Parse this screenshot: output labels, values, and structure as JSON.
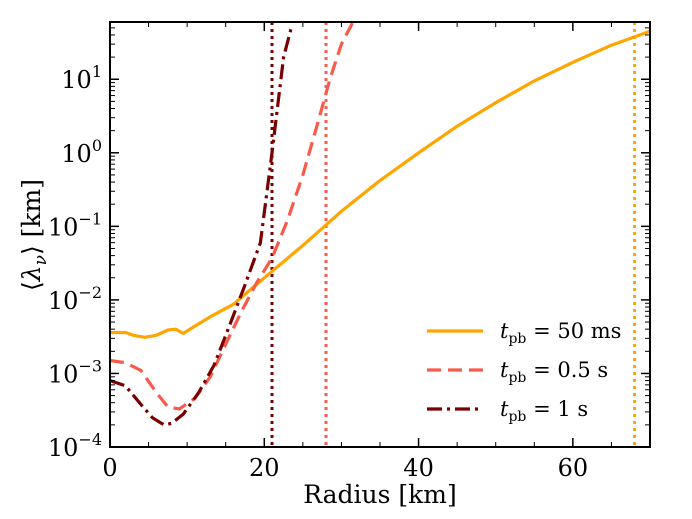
{
  "chart_data": {
    "type": "line",
    "xlabel": "Radius [km]",
    "ylabel": "⟨λ_ν⟩ [km]",
    "xlim": [
      0,
      70
    ],
    "ylim": [
      0.0001,
      60
    ],
    "yscale": "log",
    "x_ticks": [
      0,
      20,
      40,
      60
    ],
    "x_tick_labels": [
      "0",
      "20",
      "40",
      "60"
    ],
    "y_ticks": [
      0.0001,
      0.001,
      0.01,
      0.1,
      1,
      10
    ],
    "y_tick_labels": [
      {
        "base": "10",
        "exp": "−4"
      },
      {
        "base": "10",
        "exp": "−3"
      },
      {
        "base": "10",
        "exp": "−2"
      },
      {
        "base": "10",
        "exp": "−1"
      },
      {
        "base": "10",
        "exp": "0"
      },
      {
        "base": "10",
        "exp": "1"
      }
    ],
    "legend_position": "bottom-right",
    "series": [
      {
        "name": "t_pb = 50 ms",
        "label_var": "t",
        "label_sub": "pb",
        "label_value": " = 50 ms",
        "color": "#FFA500",
        "dash": "solid",
        "points": [
          [
            0,
            0.0036
          ],
          [
            2,
            0.0036
          ],
          [
            3,
            0.0033
          ],
          [
            4.5,
            0.0031
          ],
          [
            6,
            0.0033
          ],
          [
            7.5,
            0.0039
          ],
          [
            8.5,
            0.004
          ],
          [
            9.5,
            0.0035
          ],
          [
            11,
            0.0044
          ],
          [
            13,
            0.0059
          ],
          [
            16,
            0.0087
          ],
          [
            20,
            0.02
          ],
          [
            25,
            0.055
          ],
          [
            30,
            0.16
          ],
          [
            35,
            0.42
          ],
          [
            40,
            1.0
          ],
          [
            45,
            2.3
          ],
          [
            50,
            4.8
          ],
          [
            55,
            9.5
          ],
          [
            60,
            17
          ],
          [
            65,
            29
          ],
          [
            70,
            45
          ]
        ],
        "vline_x": 68
      },
      {
        "name": "t_pb = 0.5 s",
        "label_var": "t",
        "label_sub": "pb",
        "label_value": " = 0.5 s",
        "color": "#F75C4A",
        "dash": "dashed",
        "points": [
          [
            0,
            0.0015
          ],
          [
            2,
            0.0014
          ],
          [
            4,
            0.0011
          ],
          [
            6,
            0.00055
          ],
          [
            7.5,
            0.00035
          ],
          [
            9,
            0.00033
          ],
          [
            11,
            0.00046
          ],
          [
            13,
            0.0009
          ],
          [
            15,
            0.0025
          ],
          [
            17,
            0.0068
          ],
          [
            19,
            0.017
          ],
          [
            21,
            0.037
          ],
          [
            23,
            0.12
          ],
          [
            25,
            0.5
          ],
          [
            27,
            2.7
          ],
          [
            28.5,
            10
          ],
          [
            30,
            30
          ],
          [
            31.5,
            60
          ]
        ],
        "vline_x": 28
      },
      {
        "name": "t_pb = 1 s",
        "label_var": "t",
        "label_sub": "pb",
        "label_value": " = 1 s",
        "color": "#7A0000",
        "dash": "dashdot",
        "points": [
          [
            0,
            0.0008
          ],
          [
            2,
            0.00068
          ],
          [
            4,
            0.00038
          ],
          [
            5.5,
            0.00025
          ],
          [
            7,
            0.0002
          ],
          [
            8,
            0.00021
          ],
          [
            9.5,
            0.00028
          ],
          [
            11.5,
            0.00055
          ],
          [
            13.5,
            0.0013
          ],
          [
            15.5,
            0.0045
          ],
          [
            17.5,
            0.016
          ],
          [
            19.5,
            0.06
          ],
          [
            21,
            1.0
          ],
          [
            22.5,
            20
          ],
          [
            23.5,
            50
          ]
        ],
        "vline_x": 21
      }
    ]
  }
}
